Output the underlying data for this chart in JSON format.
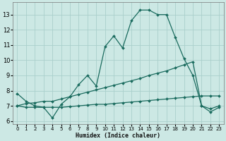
{
  "xlabel": "Humidex (Indice chaleur)",
  "x": [
    0,
    1,
    2,
    3,
    4,
    5,
    6,
    7,
    8,
    9,
    10,
    11,
    12,
    13,
    14,
    15,
    16,
    17,
    18,
    19,
    20,
    21,
    22,
    23
  ],
  "line1": [
    7.8,
    7.3,
    7.0,
    6.9,
    6.2,
    7.1,
    7.6,
    8.4,
    9.0,
    8.3,
    10.9,
    11.6,
    10.8,
    12.6,
    13.3,
    13.3,
    13.0,
    13.0,
    11.5,
    10.1,
    9.0,
    7.0,
    6.6,
    6.9
  ],
  "line2": [
    7.0,
    7.15,
    7.2,
    7.3,
    7.3,
    7.45,
    7.6,
    7.75,
    7.9,
    8.05,
    8.2,
    8.35,
    8.5,
    8.65,
    8.8,
    9.0,
    9.15,
    9.3,
    9.5,
    9.7,
    9.9,
    7.0,
    6.8,
    7.0
  ],
  "line3": [
    7.0,
    6.9,
    6.9,
    6.9,
    6.9,
    6.9,
    6.95,
    7.0,
    7.05,
    7.1,
    7.1,
    7.15,
    7.2,
    7.25,
    7.3,
    7.35,
    7.4,
    7.45,
    7.5,
    7.55,
    7.6,
    7.65,
    7.65,
    7.65
  ],
  "color": "#1a6b5e",
  "bg_color": "#cce8e4",
  "grid_color": "#aacfcb",
  "ylim": [
    5.8,
    13.8
  ],
  "yticks": [
    6,
    7,
    8,
    9,
    10,
    11,
    12,
    13
  ],
  "xlim": [
    -0.5,
    23.5
  ],
  "xticks": [
    0,
    1,
    2,
    3,
    4,
    5,
    6,
    7,
    8,
    9,
    10,
    11,
    12,
    13,
    14,
    15,
    16,
    17,
    18,
    19,
    20,
    21,
    22,
    23
  ]
}
